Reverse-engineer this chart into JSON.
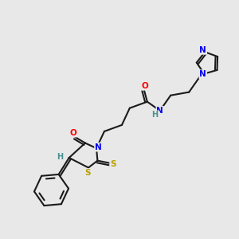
{
  "bg_color": "#e8e8e8",
  "bond_color": "#1a1a1a",
  "atom_colors": {
    "N": "#0000ee",
    "O": "#ff0000",
    "S": "#b8a000",
    "H": "#4a9090",
    "C": "#1a1a1a"
  },
  "figsize": [
    3.0,
    3.0
  ],
  "dpi": 100
}
